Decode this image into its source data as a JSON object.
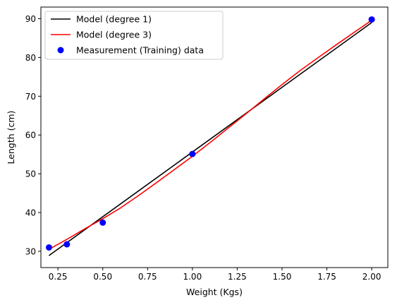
{
  "chart_data": {
    "type": "line",
    "xlabel": "Weight (Kgs)",
    "ylabel": "Length (cm)",
    "xlim": [
      0.155,
      2.09
    ],
    "ylim": [
      25.8,
      93.0
    ],
    "xticks": [
      0.25,
      0.5,
      0.75,
      1.0,
      1.25,
      1.5,
      1.75,
      2.0
    ],
    "xtick_labels": [
      "0.25",
      "0.50",
      "0.75",
      "1.00",
      "1.25",
      "1.50",
      "1.75",
      "2.00"
    ],
    "yticks": [
      30,
      40,
      50,
      60,
      70,
      80,
      90
    ],
    "ytick_labels": [
      "30",
      "40",
      "50",
      "60",
      "70",
      "80",
      "90"
    ],
    "grid": false,
    "legend_position": "top-left",
    "series": [
      {
        "name": "Model (degree 1)",
        "kind": "line",
        "color": "#000000",
        "x": [
          0.2,
          2.0
        ],
        "y": [
          28.9,
          89.0
        ]
      },
      {
        "name": "Model (degree 3)",
        "kind": "line",
        "color": "#ff0000",
        "x": [
          0.2,
          0.3,
          0.4,
          0.5,
          0.6,
          0.7,
          0.8,
          0.9,
          1.0,
          1.1,
          1.2,
          1.3,
          1.4,
          1.5,
          1.6,
          1.7,
          1.8,
          1.9,
          2.0
        ],
        "y": [
          30.5,
          33.1,
          35.8,
          38.4,
          41.2,
          44.4,
          47.7,
          51.1,
          54.5,
          58.1,
          61.8,
          65.5,
          69.3,
          73.0,
          76.6,
          79.9,
          83.2,
          86.4,
          89.6
        ]
      },
      {
        "name": "Measurement (Training) data",
        "kind": "scatter",
        "color": "#0000ff",
        "x": [
          0.2,
          0.3,
          0.5,
          1.0,
          2.0
        ],
        "y": [
          31.0,
          31.8,
          37.4,
          55.1,
          89.8
        ]
      }
    ]
  }
}
